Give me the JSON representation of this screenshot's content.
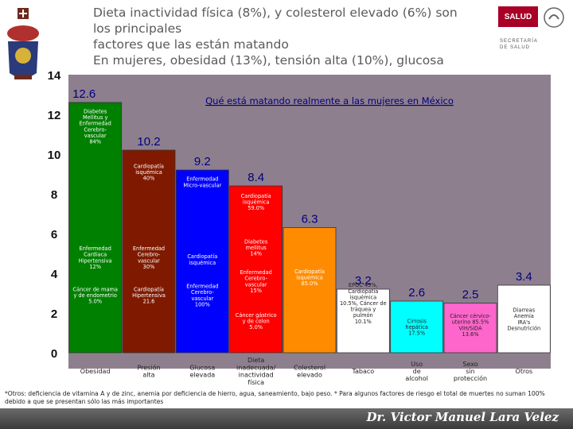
{
  "slide": {
    "title": "Dieta inactividad física (8%), y colesterol elevado (6%) son los principales\nfactores que las están matando\nEn mujeres, obesidad (13%), tensión alta (10%), glucosa",
    "logo_main": "SALUD",
    "logo_sub": "SECRETARÍA\nDE SALUD",
    "footnote": "*Otros: deficiencia de vitamina A y de zinc, anemia por deficiencia de hierro, agua, saneamiento, bajo peso. * Para algunos factores de riesgo el total de muertes no suman 100% debido a que se presentan sólo las más importantes",
    "signature": "Dr. Victor Manuel Lara Velez"
  },
  "colors": {
    "background": "#ffffff",
    "plot_bg": "#8e7f8e",
    "footer": "#4a4a4a",
    "value_label": "#000080",
    "title_link": "#000080"
  },
  "chart_data": {
    "type": "bar",
    "title": "Qué está matando realmente a las mujeres en México",
    "categories": [
      "Obesidad",
      "Presión alta",
      "Glucosa elevada",
      "Dieta inadecuada/ inactividad física",
      "Colesterol elevado",
      "Tabaco",
      "Uso de alcohol",
      "Sexo sin protección",
      "Otros"
    ],
    "values": [
      12.6,
      10.2,
      9.2,
      8.4,
      6.3,
      3.2,
      2.6,
      2.5,
      3.4
    ],
    "value_labels": [
      "12.6",
      "10.2",
      "9.2",
      "8.4",
      "6.3",
      "3.2",
      "2.6",
      "2.5",
      "3.4"
    ],
    "colors": [
      "#008000",
      "#7f1a00",
      "#0000ff",
      "#ff0000",
      "#ff8c00",
      "#ffffff",
      "#00ffff",
      "#ff66cc",
      "#ffffff"
    ],
    "ylim": [
      0,
      14
    ],
    "yticks": [
      "0",
      "2",
      "4",
      "6",
      "8",
      "10",
      "12",
      "14"
    ],
    "grid": false,
    "annotations": [
      {
        "bar": 0,
        "y": 11.3,
        "text": "Diabetes\nMellitus y\nEnfermedad\nCerebro-\nvascular\n84%"
      },
      {
        "bar": 0,
        "y": 4.7,
        "text": "Enfermedad\nCardiaca\nHipertensiva\n12%"
      },
      {
        "bar": 0,
        "y": 2.8,
        "text": "Cáncer de mama\ny de endometrio\n5.0%"
      },
      {
        "bar": 1,
        "y": 9.0,
        "text": "Cardiopatía\nisquémica\n40%"
      },
      {
        "bar": 1,
        "y": 4.7,
        "text": "Enfermedad\nCerebro-\nvascular\n30%"
      },
      {
        "bar": 1,
        "y": 2.8,
        "text": "Cardiopatía\nHipertensiva\n21.6"
      },
      {
        "bar": 2,
        "y": 8.5,
        "text": "Enfermedad\nMicro-vascular"
      },
      {
        "bar": 2,
        "y": 4.6,
        "text": "Cardiopatía\nisquémica"
      },
      {
        "bar": 2,
        "y": 2.8,
        "text": "Enfermedad\nCerebro-\nvascular\n100%"
      },
      {
        "bar": 3,
        "y": 7.5,
        "text": "Cardiopatía\nisquémica\n59.0%"
      },
      {
        "bar": 3,
        "y": 5.2,
        "text": "Diabetes\nmellitus\n14%"
      },
      {
        "bar": 3,
        "y": 3.5,
        "text": "Enfermedad\nCerebro-\nvascular\n15%"
      },
      {
        "bar": 3,
        "y": 1.5,
        "text": "Cáncer gástrico\ny de colon\n5.0%"
      },
      {
        "bar": 4,
        "y": 3.7,
        "text": "Cardiopatía\nisquémica\n85.0%"
      },
      {
        "bar": 5,
        "y": 2.4,
        "text": "EPOC 43%,\nCardiopatía\nisquémica\n10.5%, Cáncer de\ntráquea y\npulmón\n10.1%"
      },
      {
        "bar": 6,
        "y": 1.2,
        "text": "Cirrosis\nhepática\n17.5%"
      },
      {
        "bar": 7,
        "y": 1.3,
        "text": "Cáncer cérvico-\nuterino 85.5%\nVIH/SIDA\n13.6%"
      },
      {
        "bar": 8,
        "y": 1.6,
        "text": "Diarreas\nAnemia\nIRA's\nDesnutrición"
      }
    ]
  }
}
